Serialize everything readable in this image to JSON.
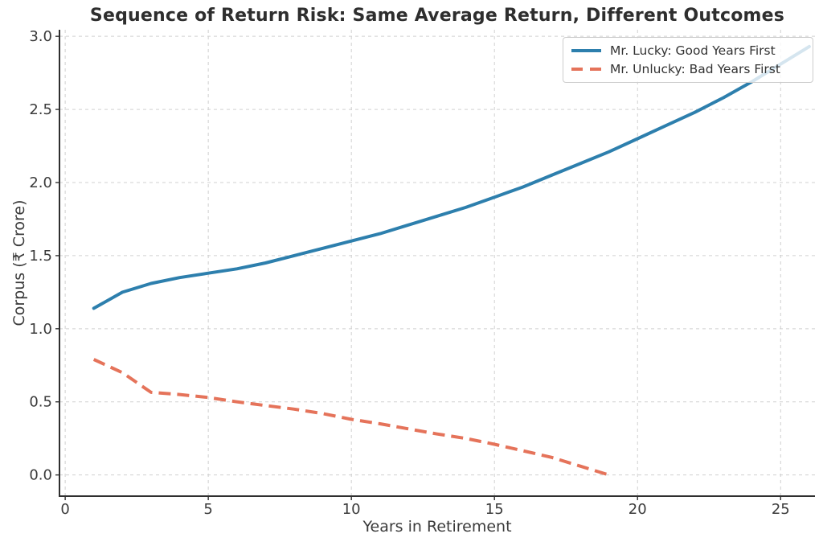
{
  "chart_data": {
    "type": "line",
    "title": "Sequence of Return Risk: Same Average Return, Different Outcomes",
    "xlabel": "Years in Retirement",
    "ylabel": "Corpus (₹ Crore)",
    "xlim": [
      -0.2,
      26.2
    ],
    "ylim": [
      -0.145,
      3.045
    ],
    "xticks": [
      0,
      5,
      10,
      15,
      20,
      25
    ],
    "xtick_labels": [
      "0",
      "5",
      "10",
      "15",
      "20",
      "25"
    ],
    "yticks": [
      0.0,
      0.5,
      1.0,
      1.5,
      2.0,
      2.5,
      3.0
    ],
    "ytick_labels": [
      "0.0",
      "0.5",
      "1.0",
      "1.5",
      "2.0",
      "2.5",
      "3.0"
    ],
    "grid": true,
    "legend_position": "upper right",
    "series": [
      {
        "name": "Mr. Lucky: Good Years First",
        "color": "#2d7fad",
        "style": "solid",
        "x": [
          1,
          2,
          3,
          4,
          5,
          6,
          7,
          8,
          9,
          10,
          11,
          12,
          13,
          14,
          15,
          16,
          17,
          18,
          19,
          20,
          21,
          22,
          23,
          24,
          25,
          26
        ],
        "values": [
          1.14,
          1.25,
          1.31,
          1.35,
          1.38,
          1.41,
          1.45,
          1.5,
          1.55,
          1.6,
          1.65,
          1.71,
          1.77,
          1.83,
          1.9,
          1.97,
          2.05,
          2.13,
          2.21,
          2.3,
          2.39,
          2.48,
          2.58,
          2.69,
          2.81,
          2.93
        ]
      },
      {
        "name": "Mr. Unlucky: Bad Years First",
        "color": "#e5735a",
        "style": "dashed",
        "x": [
          1,
          2,
          3,
          4,
          5,
          6,
          7,
          8,
          9,
          10,
          11,
          12,
          13,
          14,
          15,
          16,
          17,
          18,
          19
        ],
        "values": [
          0.79,
          0.7,
          0.565,
          0.55,
          0.53,
          0.5,
          0.475,
          0.45,
          0.42,
          0.38,
          0.35,
          0.315,
          0.28,
          0.25,
          0.21,
          0.165,
          0.12,
          0.06,
          0.0
        ]
      }
    ]
  }
}
